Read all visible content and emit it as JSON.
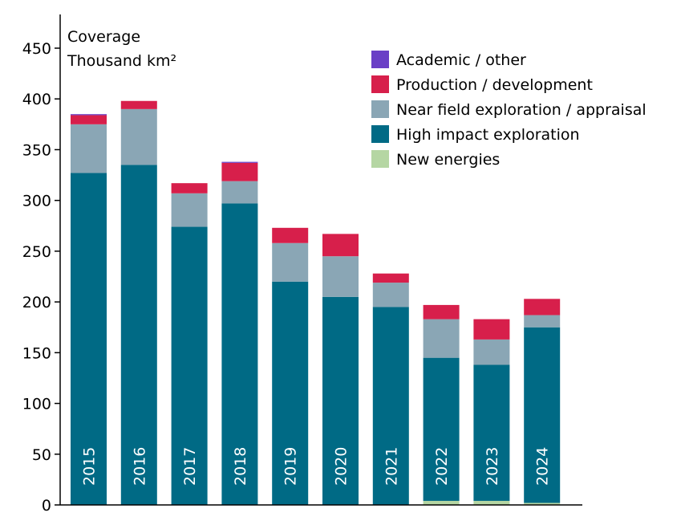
{
  "chart_data": {
    "type": "bar",
    "stacked": true,
    "unit_title": "Coverage",
    "unit_subtitle": "Thousand km²",
    "categories": [
      "2015",
      "2016",
      "2017",
      "2018",
      "2019",
      "2020",
      "2021",
      "2022",
      "2023",
      "2024"
    ],
    "series": [
      {
        "name": "New energies",
        "color": "#b5d6a3",
        "values": [
          0,
          0,
          0,
          0,
          0,
          0,
          0,
          4,
          4,
          2
        ]
      },
      {
        "name": "High impact exploration",
        "color": "#006a85",
        "values": [
          327,
          335,
          274,
          297,
          220,
          205,
          195,
          141,
          134,
          173
        ]
      },
      {
        "name": "Near field exploration / appraisal",
        "color": "#8aa6b5",
        "values": [
          48,
          55,
          33,
          22,
          38,
          40,
          24,
          38,
          25,
          12
        ]
      },
      {
        "name": "Production / development",
        "color": "#d71f4b",
        "values": [
          9,
          8,
          10,
          18,
          15,
          22,
          9,
          14,
          20,
          16
        ]
      },
      {
        "name": "Academic / other",
        "color": "#6a3fc6",
        "values": [
          1,
          0,
          0,
          1,
          0,
          0,
          0,
          0,
          0,
          0
        ]
      }
    ],
    "legend_order": [
      "Academic / other",
      "Production / development",
      "Near field exploration / appraisal",
      "High impact exploration",
      "New energies"
    ],
    "yticks": [
      0,
      50,
      100,
      150,
      200,
      250,
      300,
      350,
      400,
      450
    ],
    "ylim": [
      0,
      460
    ],
    "grid": false,
    "legend_position": "top-right"
  }
}
